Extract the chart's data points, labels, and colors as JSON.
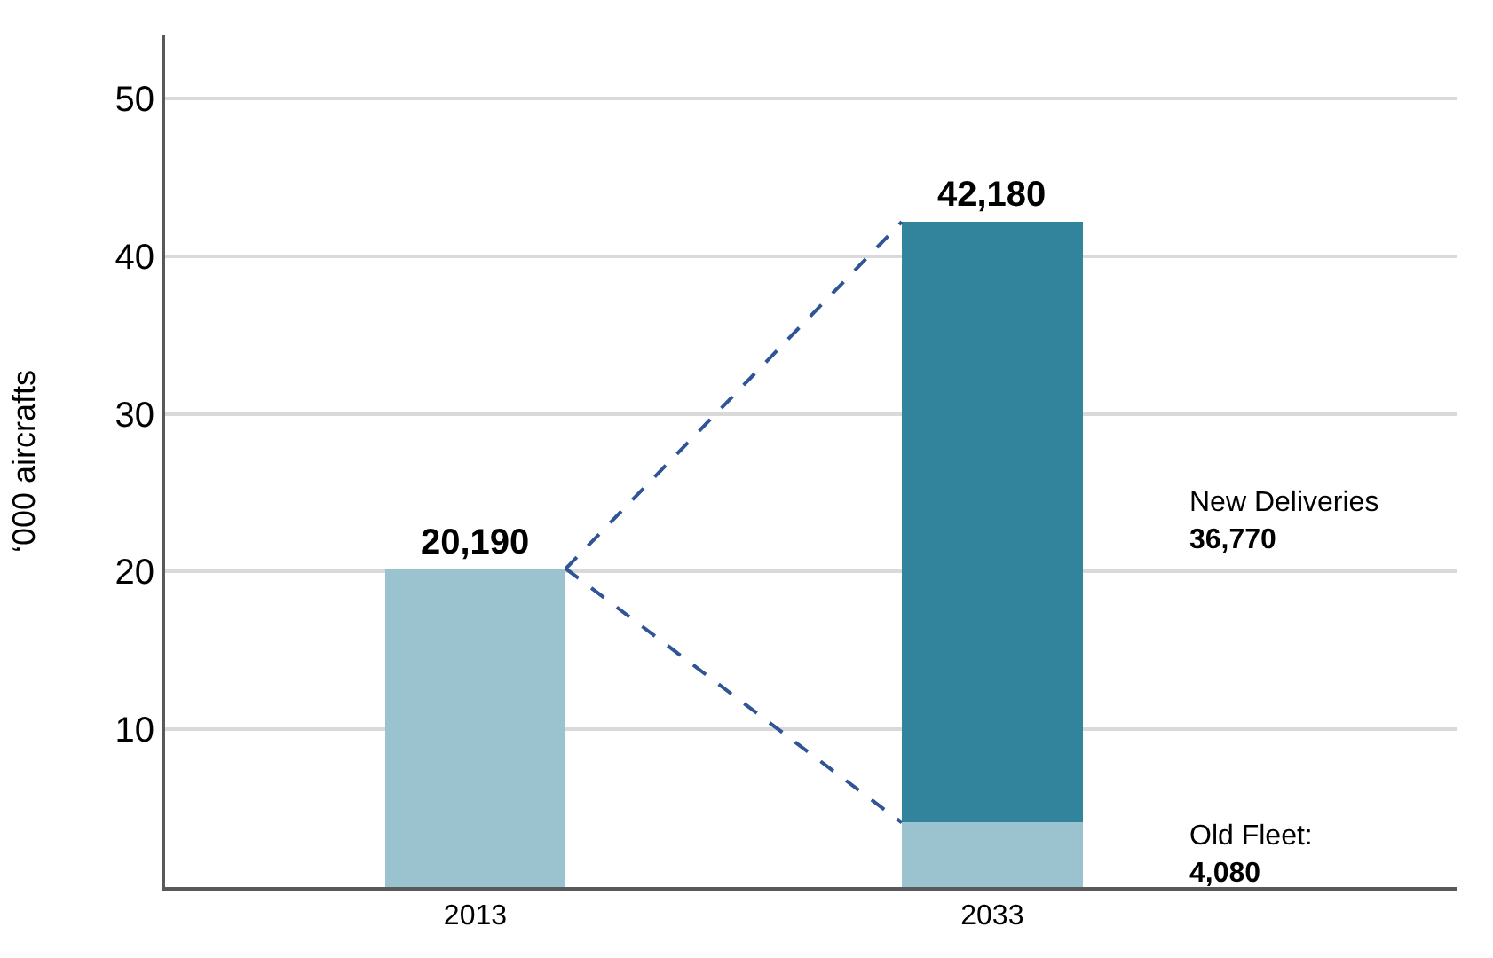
{
  "chart_data": {
    "type": "bar",
    "stacked": true,
    "categories": [
      "2013",
      "2033"
    ],
    "ylabel": "‘000 aircrafts",
    "ylim": [
      0,
      54
    ],
    "yticks": [
      10,
      20,
      30,
      40,
      50
    ],
    "grid": "y",
    "series": [
      {
        "values": [
          20.19,
          4.08
        ],
        "color": "#9ac3cf"
      },
      {
        "values": [
          null,
          38.1
        ],
        "color": "#31849b"
      }
    ],
    "totals": [
      "20,190",
      "42,180"
    ],
    "annotations": [
      "New Deliveries\n36,770",
      "Old Fleet:\n4,080"
    ]
  }
}
